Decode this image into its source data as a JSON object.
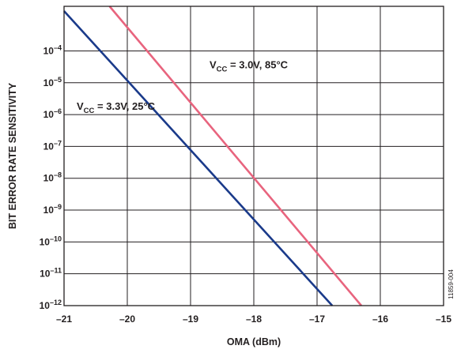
{
  "chart_data": {
    "type": "line",
    "xlabel": "OMA (dBm)",
    "ylabel": "BIT ERROR RATE SENSITIVITY",
    "xlim": [
      -21,
      -15
    ],
    "ylim_log10": [
      -12,
      -2.6
    ],
    "y_scale": "log",
    "grid": true,
    "x_ticks": [
      {
        "value": -21,
        "label": "–21"
      },
      {
        "value": -20,
        "label": "–20"
      },
      {
        "value": -19,
        "label": "–19"
      },
      {
        "value": -18,
        "label": "–18"
      },
      {
        "value": -17,
        "label": "–17"
      },
      {
        "value": -16,
        "label": "–16"
      },
      {
        "value": -15,
        "label": "–15"
      }
    ],
    "y_ticks": [
      {
        "exp": -4,
        "label_base": "10",
        "label_exp": "–4"
      },
      {
        "exp": -5,
        "label_base": "10",
        "label_exp": "–5"
      },
      {
        "exp": -6,
        "label_base": "10",
        "label_exp": "–6"
      },
      {
        "exp": -7,
        "label_base": "10",
        "label_exp": "–7"
      },
      {
        "exp": -8,
        "label_base": "10",
        "label_exp": "–8"
      },
      {
        "exp": -9,
        "label_base": "10",
        "label_exp": "–9"
      },
      {
        "exp": -10,
        "label_base": "10",
        "label_exp": "–10"
      },
      {
        "exp": -11,
        "label_base": "10",
        "label_exp": "–11"
      },
      {
        "exp": -12,
        "label_base": "10",
        "label_exp": "–12"
      }
    ],
    "series": [
      {
        "color": "#1a3a8a",
        "points": [
          [
            -21.0,
            -2.75
          ],
          [
            -16.76,
            -12.0
          ]
        ],
        "annotation": {
          "v": "V",
          "sub": "CC",
          "rest": " = 3.3V, 25°C",
          "x": -20.8,
          "y": -5.85
        }
      },
      {
        "color": "#e8647e",
        "points": [
          [
            -20.28,
            -2.6
          ],
          [
            -16.3,
            -12.0
          ]
        ],
        "annotation": {
          "v": "V",
          "sub": "CC",
          "rest": " = 3.0V, 85°C",
          "x": -18.7,
          "y": -4.55
        }
      }
    ]
  },
  "figure_id": "11859-004"
}
